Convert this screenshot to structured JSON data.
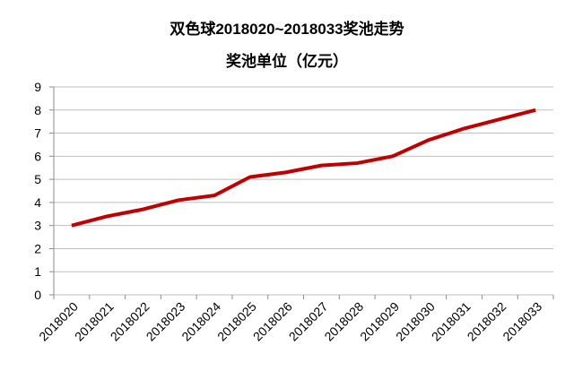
{
  "chart_data": {
    "type": "line",
    "title": "双色球2018020~2018033奖池走势",
    "subtitle": "奖池单位（亿元）",
    "categories": [
      "2018020",
      "2018021",
      "2018022",
      "2018023",
      "2018024",
      "2018025",
      "2018026",
      "2018027",
      "2018028",
      "2018029",
      "2018030",
      "2018031",
      "2018032",
      "2018033"
    ],
    "values": [
      3.0,
      3.4,
      3.7,
      4.1,
      4.3,
      5.1,
      5.3,
      5.6,
      5.7,
      6.0,
      6.7,
      7.2,
      7.6,
      8.0
    ],
    "color": "#c00000",
    "ylim": [
      0,
      9
    ],
    "yticks": [
      0,
      1,
      2,
      3,
      4,
      5,
      6,
      7,
      8,
      9
    ],
    "grid": true
  }
}
